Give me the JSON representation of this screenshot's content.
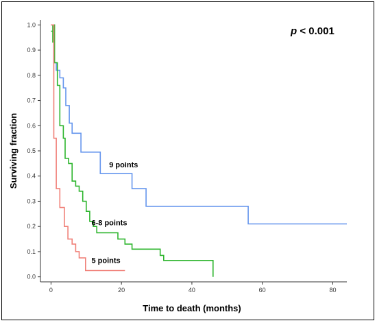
{
  "chart_data": {
    "type": "line",
    "subtype": "step",
    "title": "",
    "xlabel": "Time to death (months)",
    "ylabel": "Surviving fraction",
    "xlim": [
      -3,
      84
    ],
    "ylim": [
      -0.02,
      1.02
    ],
    "x_ticks": [
      0,
      20,
      40,
      60,
      80
    ],
    "y_ticks": [
      0.0,
      0.1,
      0.2,
      0.3,
      0.4,
      0.5,
      0.6,
      0.7,
      0.8,
      0.9,
      1.0
    ],
    "x_tick_labels": [
      "0",
      "20",
      "40",
      "60",
      "80"
    ],
    "y_tick_labels": [
      "0.0",
      "0.1",
      "0.2",
      "0.3",
      "0.4",
      "0.5",
      "0.6",
      "0.7",
      "0.8",
      "0.9",
      "1.0"
    ],
    "grid": false,
    "annotation": {
      "italic": "p",
      "rest": " < 0.001",
      "position": "top-right"
    },
    "series": [
      {
        "name": "9 points",
        "color": "#6495ED",
        "label_anchor": [
          16.5,
          0.435
        ],
        "points": [
          [
            0,
            1.0
          ],
          [
            0.8,
            1.0
          ],
          [
            0.8,
            0.85
          ],
          [
            1.5,
            0.85
          ],
          [
            1.5,
            0.82
          ],
          [
            2.5,
            0.82
          ],
          [
            2.5,
            0.79
          ],
          [
            3.5,
            0.79
          ],
          [
            3.5,
            0.75
          ],
          [
            4.2,
            0.75
          ],
          [
            4.2,
            0.68
          ],
          [
            5.2,
            0.68
          ],
          [
            5.2,
            0.61
          ],
          [
            6,
            0.61
          ],
          [
            6,
            0.57
          ],
          [
            8.5,
            0.57
          ],
          [
            8.5,
            0.495
          ],
          [
            14,
            0.495
          ],
          [
            14,
            0.41
          ],
          [
            23,
            0.41
          ],
          [
            23,
            0.35
          ],
          [
            27,
            0.35
          ],
          [
            27,
            0.28
          ],
          [
            56,
            0.28
          ],
          [
            56,
            0.21
          ],
          [
            84,
            0.21
          ]
        ]
      },
      {
        "name": "6-8 points",
        "color": "#2DB52D",
        "label_anchor": [
          11.5,
          0.205
        ],
        "points": [
          [
            0,
            0.975
          ],
          [
            0.5,
            0.975
          ],
          [
            0.5,
            0.93
          ],
          [
            0.5,
            1.0
          ],
          [
            1,
            1.0
          ],
          [
            1,
            0.85
          ],
          [
            1.8,
            0.85
          ],
          [
            1.8,
            0.76
          ],
          [
            2.5,
            0.76
          ],
          [
            2.5,
            0.6
          ],
          [
            3.5,
            0.6
          ],
          [
            3.5,
            0.55
          ],
          [
            4,
            0.55
          ],
          [
            4,
            0.47
          ],
          [
            5,
            0.47
          ],
          [
            5,
            0.45
          ],
          [
            6,
            0.45
          ],
          [
            6,
            0.38
          ],
          [
            7,
            0.38
          ],
          [
            7,
            0.36
          ],
          [
            8,
            0.36
          ],
          [
            8,
            0.34
          ],
          [
            9,
            0.34
          ],
          [
            9,
            0.3
          ],
          [
            10,
            0.3
          ],
          [
            10,
            0.26
          ],
          [
            11,
            0.26
          ],
          [
            11,
            0.22
          ],
          [
            12,
            0.22
          ],
          [
            12,
            0.2
          ],
          [
            13,
            0.2
          ],
          [
            13,
            0.175
          ],
          [
            19,
            0.175
          ],
          [
            19,
            0.15
          ],
          [
            21,
            0.15
          ],
          [
            21,
            0.13
          ],
          [
            23,
            0.13
          ],
          [
            23,
            0.11
          ],
          [
            31,
            0.11
          ],
          [
            31,
            0.085
          ],
          [
            32,
            0.085
          ],
          [
            32,
            0.065
          ],
          [
            46,
            0.065
          ],
          [
            46,
            0.0
          ]
        ]
      },
      {
        "name": "5 points",
        "color": "#F08078",
        "label_anchor": [
          11.5,
          0.055
        ],
        "points": [
          [
            0,
            1.0
          ],
          [
            0.8,
            1.0
          ],
          [
            0.8,
            0.55
          ],
          [
            1.5,
            0.55
          ],
          [
            1.5,
            0.35
          ],
          [
            2.5,
            0.35
          ],
          [
            2.5,
            0.275
          ],
          [
            3.8,
            0.275
          ],
          [
            3.8,
            0.2
          ],
          [
            4.8,
            0.2
          ],
          [
            4.8,
            0.15
          ],
          [
            6,
            0.15
          ],
          [
            6,
            0.13
          ],
          [
            7,
            0.13
          ],
          [
            7,
            0.1
          ],
          [
            8,
            0.1
          ],
          [
            8,
            0.075
          ],
          [
            9.8,
            0.075
          ],
          [
            9.8,
            0.025
          ],
          [
            21,
            0.025
          ]
        ]
      }
    ]
  }
}
